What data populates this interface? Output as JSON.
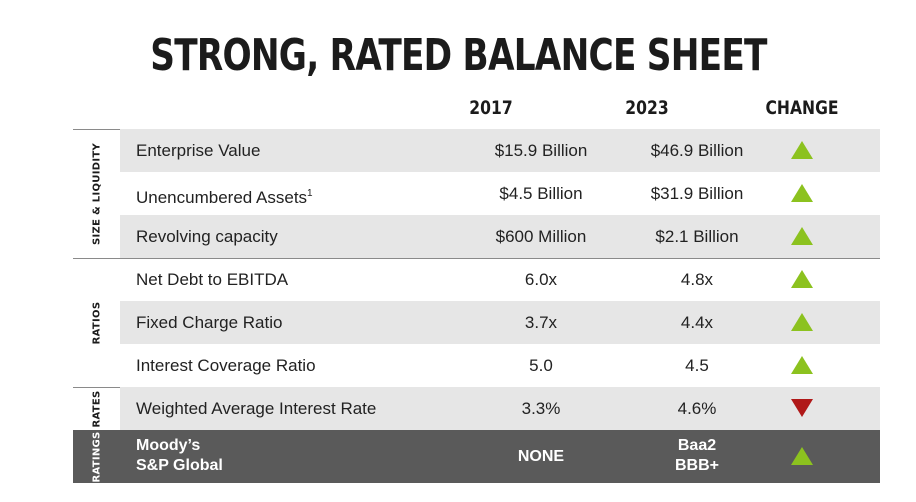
{
  "title": "STRONG, RATED BALANCE SHEET",
  "columns": {
    "c2017": "2017",
    "c2023": "2023",
    "change": "CHANGE"
  },
  "groups": {
    "size": "SIZE & LIQUIDITY",
    "ratios": "RATIOS",
    "rates": "RATES",
    "ratings": "RATINGS"
  },
  "rows": [
    {
      "label": "Enterprise Value",
      "sup": "",
      "v2017": "$15.9 Billion",
      "v2023": "$46.9 Billion",
      "change": "up"
    },
    {
      "label": "Unencumbered Assets",
      "sup": "1",
      "v2017": "$4.5 Billion",
      "v2023": "$31.9 Billion",
      "change": "up"
    },
    {
      "label": "Revolving capacity",
      "sup": "",
      "v2017": "$600 Million",
      "v2023": "$2.1 Billion",
      "change": "up"
    },
    {
      "label": "Net Debt to EBITDA",
      "sup": "",
      "v2017": "6.0x",
      "v2023": "4.8x",
      "change": "up"
    },
    {
      "label": "Fixed Charge Ratio",
      "sup": "",
      "v2017": "3.7x",
      "v2023": "4.4x",
      "change": "up"
    },
    {
      "label": "Interest Coverage Ratio",
      "sup": "",
      "v2017": "5.0",
      "v2023": "4.5",
      "change": "up"
    },
    {
      "label": "Weighted Average Interest Rate",
      "sup": "",
      "v2017": "3.3%",
      "v2023": "4.6%",
      "change": "down"
    }
  ],
  "ratings": {
    "label_line1": "Moody’s",
    "label_line2": "S&P Global",
    "v2017": "NONE",
    "v2023_line1": "Baa2",
    "v2023_line2": "BBB+",
    "change": "up"
  },
  "colors": {
    "up": "#8cc21f",
    "down": "#b01818",
    "shade": "#e6e6e6",
    "ratings_bg": "#5a5a5a"
  }
}
